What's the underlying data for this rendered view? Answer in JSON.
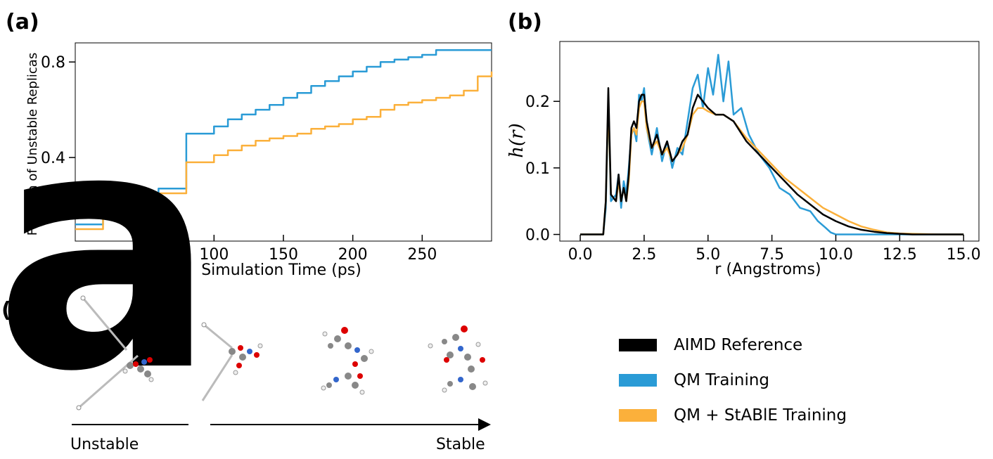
{
  "panels": {
    "a": "(a)",
    "b": "(b)",
    "c": "(c)"
  },
  "colors": {
    "aimd": "#000000",
    "qm": "#2a9bd6",
    "stable": "#fbb03b"
  },
  "legend": {
    "items": [
      {
        "label": "AIMD Reference",
        "color": "#000000"
      },
      {
        "label": "QM Training",
        "color": "#2a9bd6"
      },
      {
        "label": "QM + StABlE Training",
        "color": "#fbb03b"
      }
    ]
  },
  "molecules": {
    "left_label": "Unstable",
    "right_label": "Stable"
  },
  "chart_data": [
    {
      "type": "line",
      "panel": "(a)",
      "title": "",
      "xlabel": "Simulation Time (ps)",
      "ylabel": "Fraction of Unstable Replicas",
      "xlim": [
        0,
        300
      ],
      "ylim": [
        0.05,
        0.88
      ],
      "xticks": [
        100,
        150,
        200,
        250
      ],
      "yticks": [
        0.4,
        0.8
      ],
      "ytick_labels": [
        "0.4",
        "0.8"
      ],
      "series": [
        {
          "name": "QM Training",
          "x": [
            0,
            20,
            40,
            60,
            80,
            100,
            110,
            120,
            130,
            140,
            150,
            160,
            170,
            180,
            190,
            200,
            210,
            220,
            230,
            240,
            250,
            260,
            300
          ],
          "y": [
            0.12,
            0.2,
            0.24,
            0.27,
            0.5,
            0.53,
            0.56,
            0.58,
            0.6,
            0.62,
            0.65,
            0.67,
            0.7,
            0.72,
            0.74,
            0.76,
            0.78,
            0.8,
            0.81,
            0.82,
            0.83,
            0.85,
            0.85
          ]
        },
        {
          "name": "QM + StABlE Training",
          "x": [
            0,
            20,
            40,
            60,
            80,
            100,
            110,
            120,
            130,
            140,
            150,
            160,
            170,
            180,
            190,
            200,
            210,
            220,
            230,
            240,
            250,
            260,
            270,
            280,
            290,
            300
          ],
          "y": [
            0.1,
            0.18,
            0.22,
            0.25,
            0.38,
            0.41,
            0.43,
            0.45,
            0.47,
            0.48,
            0.49,
            0.5,
            0.52,
            0.53,
            0.54,
            0.56,
            0.57,
            0.6,
            0.62,
            0.63,
            0.64,
            0.65,
            0.66,
            0.68,
            0.74,
            0.76
          ]
        }
      ]
    },
    {
      "type": "line",
      "panel": "(b)",
      "title": "",
      "xlabel": "r (Angstroms)",
      "ylabel": "h(r)",
      "xlim": [
        -0.8,
        15.6
      ],
      "ylim": [
        -0.01,
        0.29
      ],
      "xticks": [
        0.0,
        2.5,
        5.0,
        7.5,
        10.0,
        12.5,
        15.0
      ],
      "xtick_labels": [
        "0.0",
        "2.5",
        "5.0",
        "7.5",
        "10.0",
        "12.5",
        "15.0"
      ],
      "yticks": [
        0.0,
        0.1,
        0.2
      ],
      "ytick_labels": [
        "0.0",
        "0.1",
        "0.2"
      ],
      "series": [
        {
          "name": "AIMD Reference",
          "x": [
            0,
            0.9,
            1.0,
            1.1,
            1.2,
            1.4,
            1.5,
            1.6,
            1.7,
            1.8,
            1.9,
            2.0,
            2.1,
            2.2,
            2.3,
            2.4,
            2.5,
            2.6,
            2.8,
            3.0,
            3.2,
            3.4,
            3.6,
            3.8,
            4.0,
            4.2,
            4.4,
            4.6,
            4.8,
            5.0,
            5.3,
            5.6,
            6.0,
            6.5,
            7.0,
            7.5,
            8.0,
            8.5,
            9.0,
            9.5,
            10.0,
            10.5,
            11.0,
            11.5,
            12.0,
            12.5,
            13.0,
            14.0,
            15.0
          ],
          "y": [
            0,
            0,
            0.05,
            0.22,
            0.06,
            0.05,
            0.09,
            0.05,
            0.07,
            0.05,
            0.09,
            0.16,
            0.17,
            0.16,
            0.2,
            0.21,
            0.21,
            0.17,
            0.13,
            0.15,
            0.12,
            0.14,
            0.11,
            0.12,
            0.14,
            0.15,
            0.19,
            0.21,
            0.2,
            0.19,
            0.18,
            0.18,
            0.17,
            0.14,
            0.12,
            0.1,
            0.08,
            0.06,
            0.045,
            0.03,
            0.02,
            0.012,
            0.007,
            0.004,
            0.002,
            0.001,
            0,
            0,
            0
          ]
        },
        {
          "name": "QM Training",
          "x": [
            0,
            0.9,
            1.0,
            1.1,
            1.2,
            1.4,
            1.5,
            1.6,
            1.7,
            1.8,
            1.9,
            2.0,
            2.1,
            2.2,
            2.3,
            2.4,
            2.5,
            2.6,
            2.8,
            3.0,
            3.2,
            3.4,
            3.6,
            3.8,
            4.0,
            4.2,
            4.4,
            4.6,
            4.8,
            5.0,
            5.2,
            5.4,
            5.6,
            5.8,
            6.0,
            6.3,
            6.6,
            7.0,
            7.4,
            7.8,
            8.2,
            8.6,
            9.0,
            9.3,
            9.6,
            9.8,
            10.0,
            15.0
          ],
          "y": [
            0,
            0,
            0.04,
            0.2,
            0.05,
            0.06,
            0.09,
            0.04,
            0.08,
            0.06,
            0.1,
            0.15,
            0.16,
            0.14,
            0.21,
            0.2,
            0.22,
            0.16,
            0.12,
            0.16,
            0.11,
            0.14,
            0.1,
            0.13,
            0.12,
            0.17,
            0.22,
            0.24,
            0.19,
            0.25,
            0.21,
            0.27,
            0.2,
            0.26,
            0.18,
            0.19,
            0.15,
            0.12,
            0.1,
            0.07,
            0.06,
            0.04,
            0.035,
            0.02,
            0.01,
            0.003,
            0,
            0
          ]
        },
        {
          "name": "QM + StABlE Training",
          "x": [
            0,
            0.9,
            1.0,
            1.1,
            1.2,
            1.4,
            1.5,
            1.6,
            1.7,
            1.8,
            1.9,
            2.0,
            2.1,
            2.2,
            2.3,
            2.4,
            2.5,
            2.6,
            2.8,
            3.0,
            3.2,
            3.4,
            3.6,
            3.8,
            4.0,
            4.2,
            4.4,
            4.6,
            4.8,
            5.0,
            5.3,
            5.6,
            6.0,
            6.5,
            7.0,
            7.5,
            8.0,
            8.5,
            9.0,
            9.5,
            10.0,
            10.5,
            11.0,
            11.5,
            12.0,
            12.5,
            13.0,
            14.0,
            15.0
          ],
          "y": [
            0,
            0,
            0.05,
            0.2,
            0.06,
            0.05,
            0.08,
            0.05,
            0.07,
            0.05,
            0.08,
            0.15,
            0.16,
            0.15,
            0.19,
            0.2,
            0.2,
            0.16,
            0.13,
            0.14,
            0.12,
            0.13,
            0.11,
            0.12,
            0.13,
            0.15,
            0.18,
            0.19,
            0.19,
            0.185,
            0.18,
            0.18,
            0.17,
            0.145,
            0.125,
            0.105,
            0.085,
            0.07,
            0.055,
            0.04,
            0.03,
            0.02,
            0.012,
            0.007,
            0.003,
            0.0015,
            0.001,
            0,
            0
          ]
        }
      ]
    }
  ]
}
